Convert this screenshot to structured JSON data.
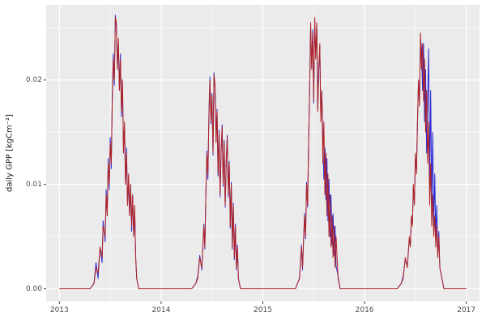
{
  "chart_data": {
    "type": "line",
    "title": "",
    "xlabel": "",
    "ylabel": "daily GPP [kgCm⁻²]",
    "legend": "none",
    "grid": true,
    "panel_background": "#EBEBEB",
    "grid_color": "#FFFFFF",
    "axis_text_color": "#4D4D4D",
    "tick_mark_color": "#333333",
    "xlim": [
      2012.87,
      2017.13
    ],
    "ylim": [
      -0.0012,
      0.0272
    ],
    "x_ticks": [
      2013,
      2014,
      2015,
      2016,
      2017
    ],
    "x_tick_labels": [
      "2013",
      "2014",
      "2015",
      "2016",
      "2017"
    ],
    "y_ticks": [
      0.0,
      0.01,
      0.02
    ],
    "y_tick_labels": [
      "0.00",
      "0.01",
      "0.02"
    ],
    "x_minor": [
      2013.5,
      2014.5,
      2015.5,
      2016.5
    ],
    "y_minor": [
      0.005,
      0.015,
      0.025
    ],
    "x": [
      2013.0,
      2013.1,
      2013.2,
      2013.3,
      2013.34,
      2013.36,
      2013.38,
      2013.4,
      2013.42,
      2013.43,
      2013.45,
      2013.46,
      2013.47,
      2013.48,
      2013.49,
      2013.5,
      2013.51,
      2013.52,
      2013.53,
      2013.54,
      2013.55,
      2013.56,
      2013.57,
      2013.58,
      2013.59,
      2013.6,
      2013.61,
      2013.62,
      2013.63,
      2013.64,
      2013.65,
      2013.66,
      2013.67,
      2013.68,
      2013.69,
      2013.7,
      2013.71,
      2013.72,
      2013.73,
      2013.74,
      2013.75,
      2013.76,
      2013.78,
      2013.82,
      2013.9,
      2014.0,
      2014.1,
      2014.2,
      2014.3,
      2014.34,
      2014.36,
      2014.38,
      2014.4,
      2014.42,
      2014.43,
      2014.44,
      2014.45,
      2014.46,
      2014.47,
      2014.48,
      2014.49,
      2014.5,
      2014.51,
      2014.52,
      2014.53,
      2014.54,
      2014.55,
      2014.56,
      2014.57,
      2014.58,
      2014.59,
      2014.6,
      2014.61,
      2014.62,
      2014.63,
      2014.64,
      2014.65,
      2014.66,
      2014.67,
      2014.68,
      2014.69,
      2014.7,
      2014.71,
      2014.72,
      2014.73,
      2014.74,
      2014.75,
      2014.76,
      2014.78,
      2014.85,
      2014.95,
      2015.05,
      2015.15,
      2015.25,
      2015.32,
      2015.36,
      2015.38,
      2015.39,
      2015.41,
      2015.42,
      2015.43,
      2015.44,
      2015.45,
      2015.46,
      2015.47,
      2015.48,
      2015.49,
      2015.5,
      2015.51,
      2015.52,
      2015.53,
      2015.54,
      2015.55,
      2015.56,
      2015.57,
      2015.58,
      2015.59,
      2015.6,
      2015.61,
      2015.62,
      2015.63,
      2015.64,
      2015.65,
      2015.66,
      2015.67,
      2015.68,
      2015.69,
      2015.7,
      2015.71,
      2015.72,
      2015.74,
      2015.76,
      2015.82,
      2015.92,
      2016.02,
      2016.12,
      2016.22,
      2016.32,
      2016.36,
      2016.38,
      2016.4,
      2016.42,
      2016.44,
      2016.45,
      2016.46,
      2016.47,
      2016.48,
      2016.49,
      2016.5,
      2016.51,
      2016.52,
      2016.53,
      2016.54,
      2016.55,
      2016.56,
      2016.57,
      2016.58,
      2016.59,
      2016.6,
      2016.61,
      2016.62,
      2016.63,
      2016.64,
      2016.65,
      2016.66,
      2016.67,
      2016.68,
      2016.69,
      2016.7,
      2016.71,
      2016.72,
      2016.73,
      2016.74,
      2016.76,
      2016.78,
      2016.85,
      2016.92,
      2017.0
    ],
    "series": [
      {
        "name": "series-blue",
        "color": "#2929D6",
        "values": [
          0,
          0,
          0,
          0,
          0.0005,
          0.0025,
          0.001,
          0.004,
          0.0025,
          0.0065,
          0.0045,
          0.0095,
          0.007,
          0.0125,
          0.0095,
          0.0145,
          0.0115,
          0.0185,
          0.0225,
          0.0195,
          0.0262,
          0.025,
          0.0215,
          0.0235,
          0.019,
          0.0225,
          0.0165,
          0.02,
          0.0135,
          0.0155,
          0.01,
          0.0135,
          0.008,
          0.0105,
          0.007,
          0.01,
          0.0055,
          0.009,
          0.005,
          0.0075,
          0.003,
          0.001,
          0,
          0,
          0,
          0,
          0,
          0,
          0,
          0.0005,
          0.0012,
          0.0032,
          0.0018,
          0.0062,
          0.0038,
          0.0092,
          0.0132,
          0.0105,
          0.0168,
          0.0203,
          0.0158,
          0.0187,
          0.0128,
          0.0207,
          0.0192,
          0.0142,
          0.0172,
          0.0108,
          0.0152,
          0.0088,
          0.0132,
          0.0157,
          0.0098,
          0.0142,
          0.0078,
          0.0122,
          0.0147,
          0.0088,
          0.0122,
          0.0058,
          0.0102,
          0.0038,
          0.0082,
          0.0028,
          0.0062,
          0.0018,
          0.0042,
          0.001,
          0,
          0,
          0,
          0,
          0,
          0,
          0,
          0.001,
          0.0042,
          0.0018,
          0.0072,
          0.0048,
          0.0102,
          0.0078,
          0.0142,
          0.0192,
          0.0252,
          0.0212,
          0.0248,
          0.0178,
          0.0258,
          0.0222,
          0.0252,
          0.0172,
          0.0212,
          0.0232,
          0.0165,
          0.0188,
          0.0145,
          0.0105,
          0.0135,
          0.0085,
          0.0125,
          0.0065,
          0.0105,
          0.005,
          0.009,
          0.0042,
          0.0072,
          0.0032,
          0.006,
          0.0022,
          0.0012,
          0,
          0,
          0,
          0,
          0,
          0,
          0,
          0.0005,
          0.0012,
          0.0028,
          0.0022,
          0.0048,
          0.0042,
          0.0068,
          0.0062,
          0.0098,
          0.0082,
          0.0128,
          0.0112,
          0.0158,
          0.0198,
          0.0178,
          0.024,
          0.023,
          0.019,
          0.0235,
          0.016,
          0.021,
          0.013,
          0.018,
          0.023,
          0.01,
          0.019,
          0.008,
          0.015,
          0.006,
          0.011,
          0.005,
          0.008,
          0.003,
          0.0055,
          0.002,
          0.001,
          0,
          0,
          0,
          0
        ]
      },
      {
        "name": "series-darkred",
        "color": "#B22222",
        "values": [
          0,
          0,
          0,
          0,
          0.0005,
          0.002,
          0.0015,
          0.004,
          0.003,
          0.006,
          0.005,
          0.009,
          0.007,
          0.012,
          0.01,
          0.014,
          0.012,
          0.018,
          0.022,
          0.02,
          0.026,
          0.0255,
          0.021,
          0.024,
          0.019,
          0.022,
          0.017,
          0.02,
          0.013,
          0.016,
          0.01,
          0.013,
          0.008,
          0.011,
          0.007,
          0.01,
          0.006,
          0.009,
          0.005,
          0.008,
          0.003,
          0.001,
          0,
          0,
          0,
          0,
          0,
          0,
          0,
          0.0005,
          0.001,
          0.003,
          0.002,
          0.006,
          0.004,
          0.009,
          0.013,
          0.011,
          0.0165,
          0.02,
          0.016,
          0.0185,
          0.013,
          0.0205,
          0.0195,
          0.014,
          0.017,
          0.011,
          0.015,
          0.009,
          0.013,
          0.0155,
          0.01,
          0.014,
          0.008,
          0.012,
          0.0145,
          0.009,
          0.012,
          0.006,
          0.01,
          0.004,
          0.008,
          0.003,
          0.006,
          0.002,
          0.004,
          0.001,
          0,
          0,
          0,
          0,
          0,
          0,
          0,
          0.001,
          0.004,
          0.002,
          0.007,
          0.005,
          0.01,
          0.008,
          0.014,
          0.019,
          0.0255,
          0.021,
          0.0245,
          0.018,
          0.026,
          0.022,
          0.0255,
          0.017,
          0.021,
          0.0235,
          0.016,
          0.019,
          0.012,
          0.016,
          0.009,
          0.013,
          0.007,
          0.011,
          0.005,
          0.009,
          0.004,
          0.007,
          0.003,
          0.006,
          0.002,
          0.005,
          0.001,
          0,
          0,
          0,
          0,
          0,
          0,
          0,
          0.0005,
          0.001,
          0.003,
          0.002,
          0.005,
          0.004,
          0.007,
          0.006,
          0.01,
          0.008,
          0.013,
          0.011,
          0.016,
          0.02,
          0.0175,
          0.0245,
          0.021,
          0.0235,
          0.018,
          0.022,
          0.015,
          0.019,
          0.012,
          0.016,
          0.008,
          0.012,
          0.006,
          0.009,
          0.005,
          0.007,
          0.004,
          0.006,
          0.003,
          0.005,
          0.002,
          0.001,
          0,
          0,
          0,
          0
        ]
      }
    ]
  }
}
